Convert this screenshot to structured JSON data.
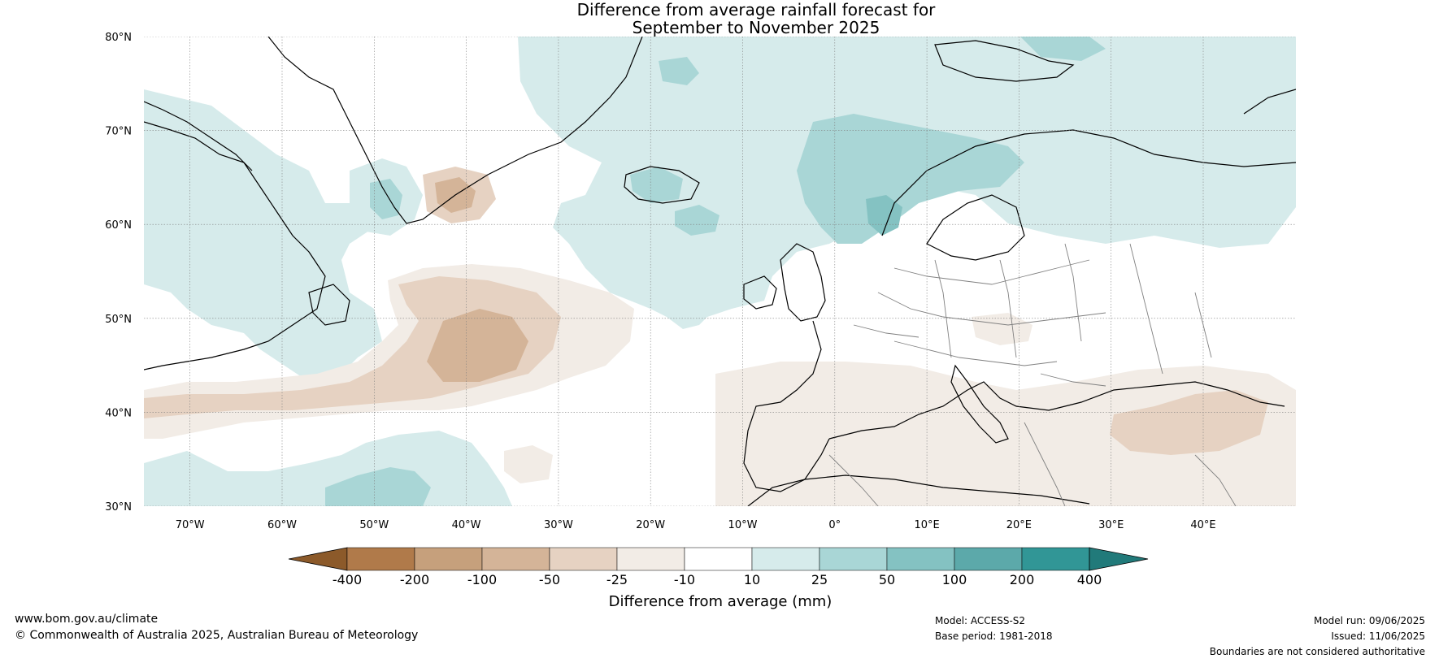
{
  "title": {
    "line1": "Difference from average rainfall forecast for",
    "line2": "September to November 2025"
  },
  "map": {
    "lat_labels": [
      "80°N",
      "70°N",
      "60°N",
      "50°N",
      "40°N",
      "30°N"
    ],
    "lon_labels": [
      "70°W",
      "60°W",
      "50°W",
      "40°W",
      "30°W",
      "20°W",
      "10°W",
      "0°",
      "10°E",
      "20°E",
      "30°E",
      "40°E"
    ],
    "colors": {
      "dry_extreme": "#8c5a2a",
      "dry_strong": "#b07a4a",
      "dry_moderate": "#c6a07c",
      "dry_mild": "#d4b498",
      "dry_slight": "#e6d2c2",
      "dry_faint": "#f2ece6",
      "neutral": "#ffffff",
      "wet_faint": "#d6ebeb",
      "wet_slight": "#a9d6d6",
      "wet_mild": "#84c2c2",
      "wet_moderate": "#5ca9aa",
      "wet_strong": "#319696",
      "wet_extreme": "#217a7a",
      "coast": "#000000",
      "border": "#808080",
      "grid": "#808080"
    }
  },
  "colorbar": {
    "ticks": [
      "-400",
      "-200",
      "-100",
      "-50",
      "-25",
      "-10",
      "10",
      "25",
      "50",
      "100",
      "200",
      "400"
    ],
    "label": "Difference from average (mm)"
  },
  "footer": {
    "website": "www.bom.gov.au/climate",
    "copyright": "© Commonwealth of Australia 2025, Australian Bureau of Meteorology",
    "model": "Model: ACCESS-S2",
    "base_period": "Base period: 1981-2018",
    "model_run": "Model run: 09/06/2025",
    "issued": "Issued: 11/06/2025",
    "disclaimer": "Boundaries are not considered authoritative"
  }
}
